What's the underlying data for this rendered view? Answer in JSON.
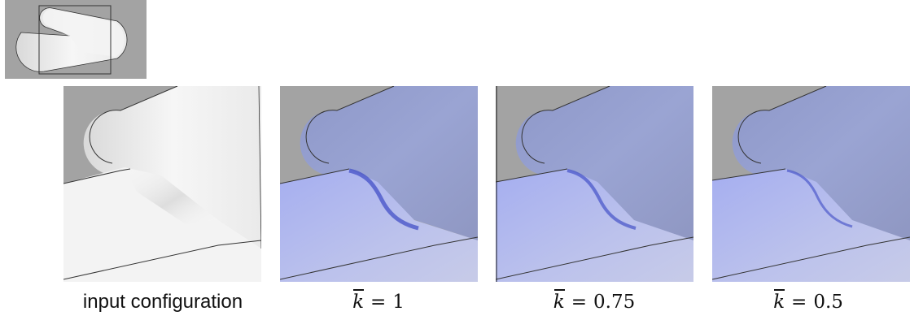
{
  "captions": {
    "input": "input configuration",
    "k_symbol": "k",
    "equals": "=",
    "k1": "1",
    "k2": "0.75",
    "k3": "0.5"
  },
  "colors": {
    "background": "#a3a3a3",
    "white_surface": "#f1f1f1",
    "blue_surface": "#9aa4d6",
    "crease": "#3c49c4"
  }
}
